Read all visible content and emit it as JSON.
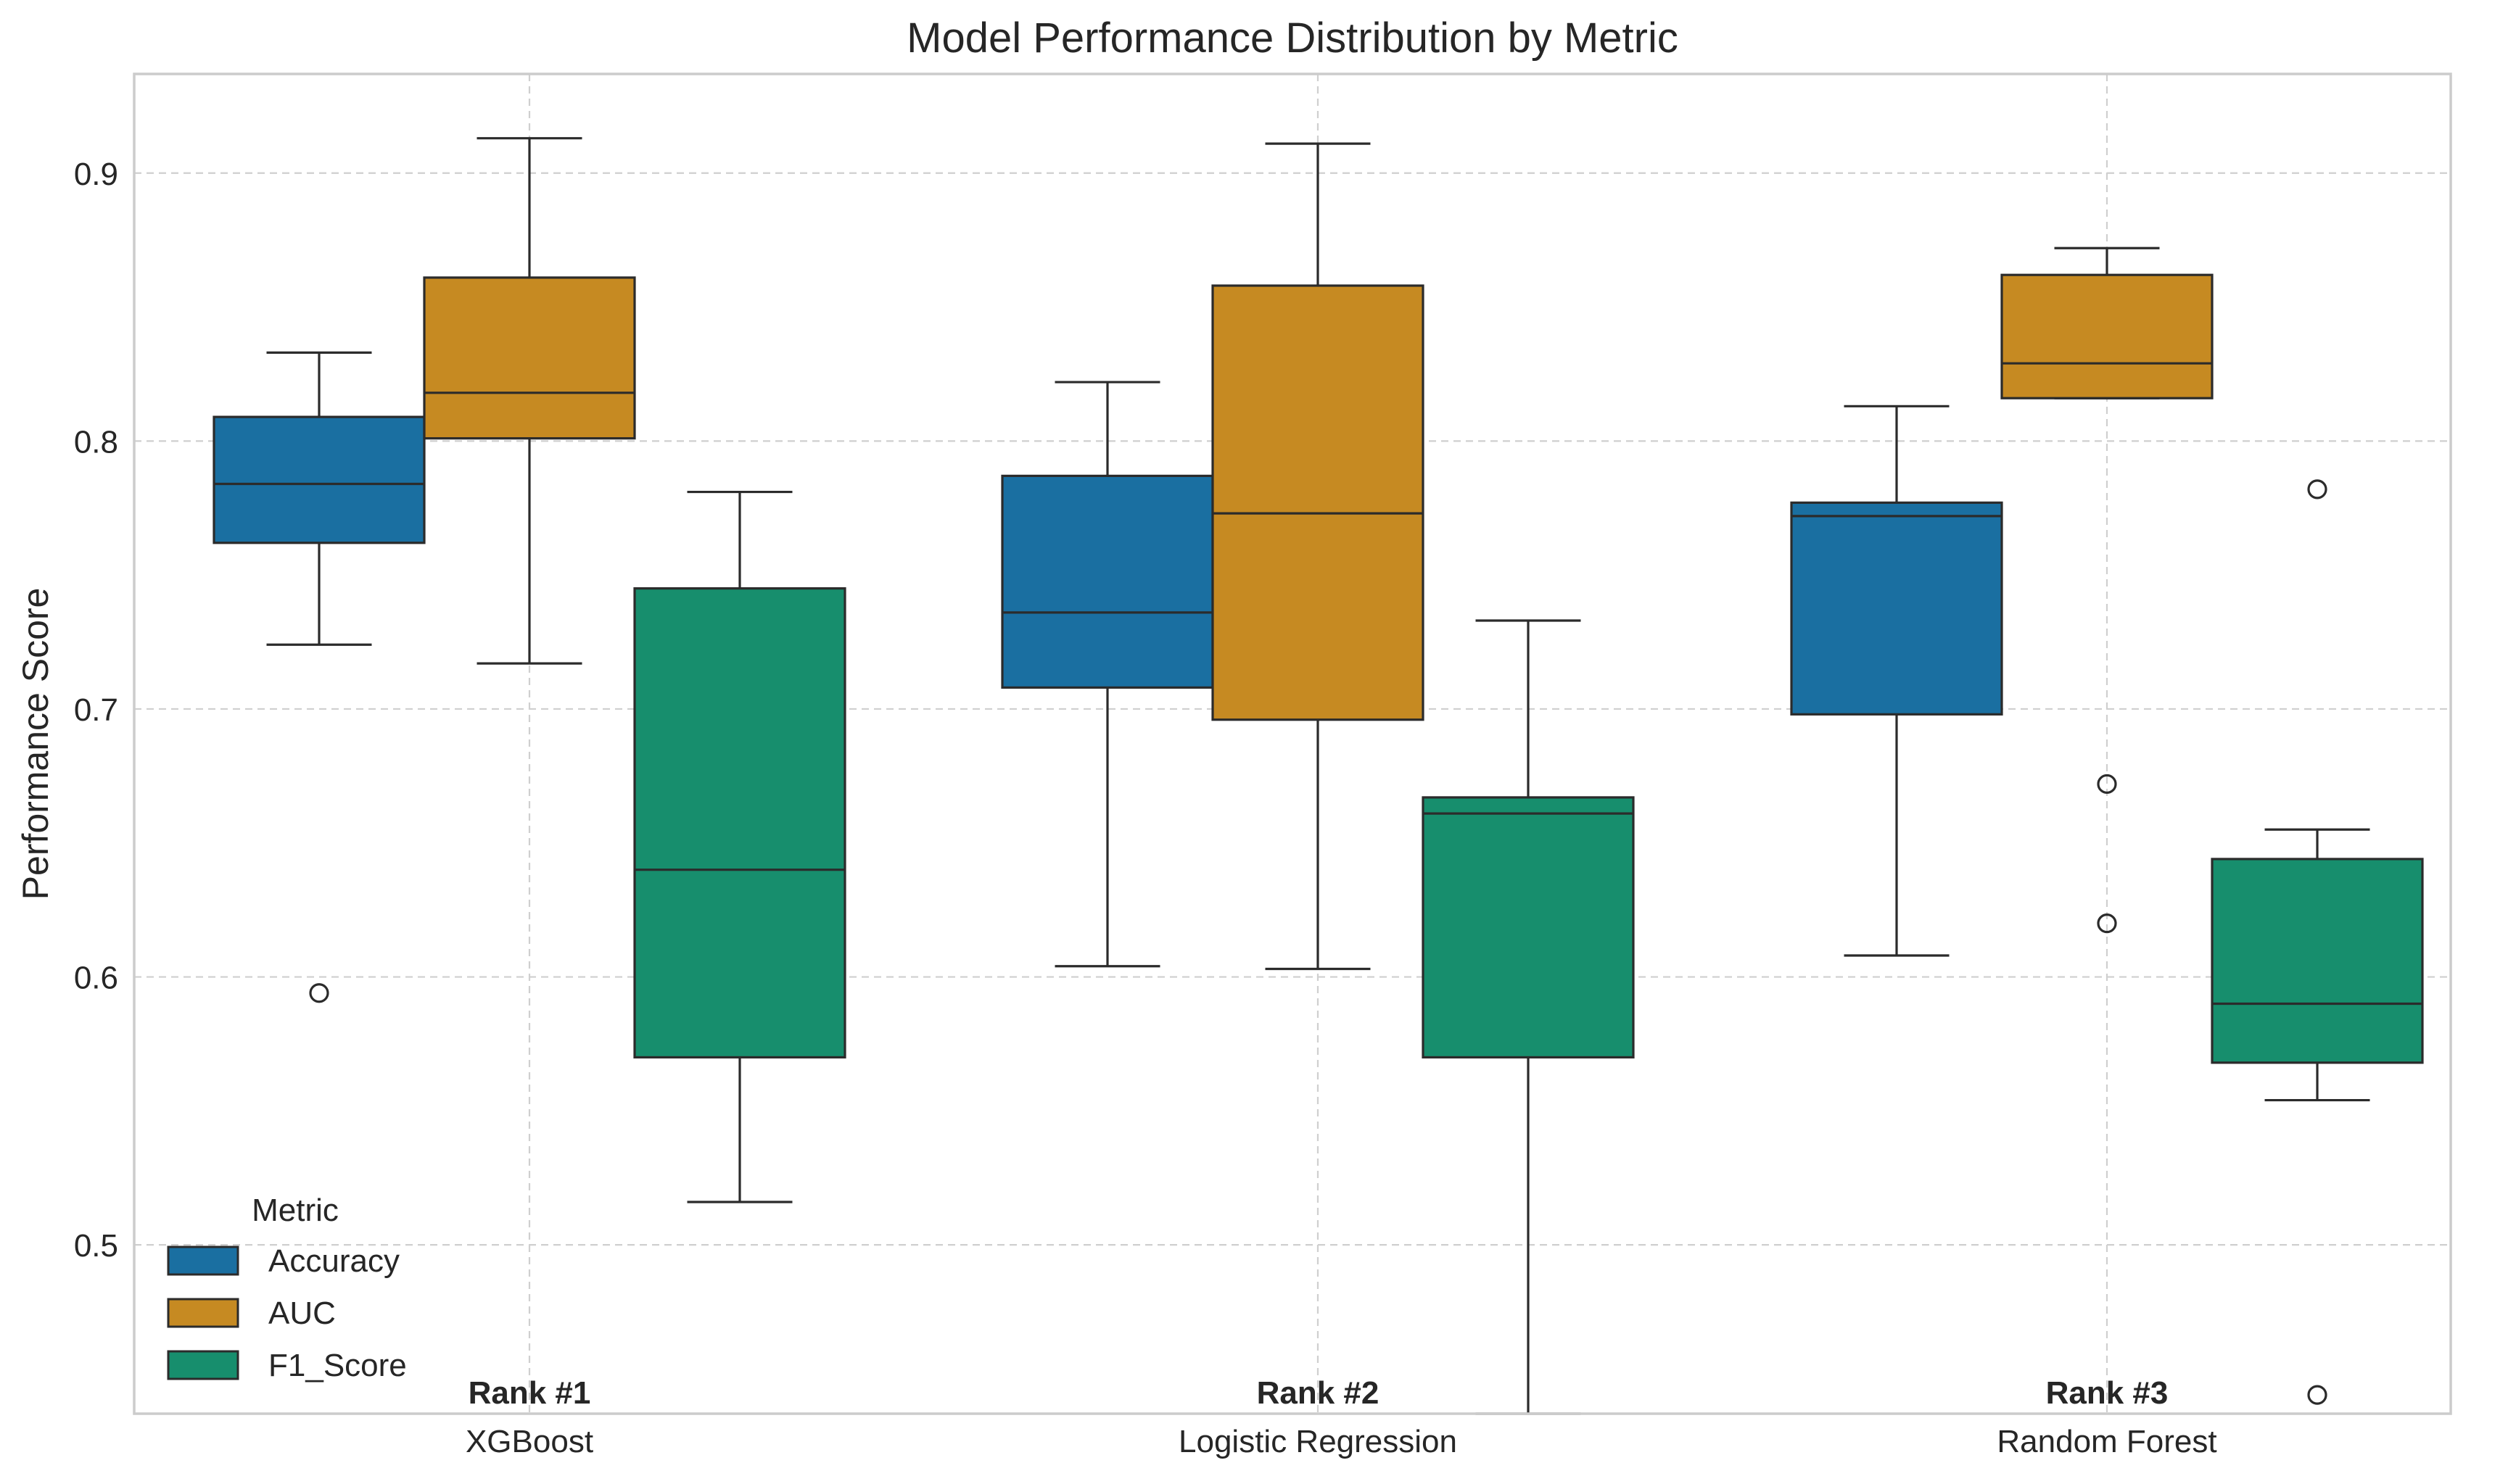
{
  "chart_data": {
    "type": "boxplot",
    "title": "Model Performance Distribution by Metric",
    "xlabel": "",
    "ylabel": "Performance Score",
    "ylim": [
      0.437,
      0.937
    ],
    "yticks": [
      0.5,
      0.6,
      0.7,
      0.8,
      0.9
    ],
    "ytick_labels": [
      "0.5",
      "0.6",
      "0.7",
      "0.8",
      "0.9"
    ],
    "grid": true,
    "categories": [
      "XGBoost",
      "Logistic Regression",
      "Random Forest"
    ],
    "rank_labels": [
      "Rank #1",
      "Rank #2",
      "Rank #3"
    ],
    "legend": {
      "title": "Metric",
      "position": "lower-left",
      "entries": [
        "Accuracy",
        "AUC",
        "F1_Score"
      ]
    },
    "series": [
      {
        "name": "Accuracy",
        "color": "#1a6fa1",
        "boxes": [
          {
            "category": "XGBoost",
            "whisker_low": 0.724,
            "q1": 0.762,
            "median": 0.784,
            "q3": 0.809,
            "whisker_high": 0.833,
            "outliers": [
              0.594
            ]
          },
          {
            "category": "Logistic Regression",
            "whisker_low": 0.604,
            "q1": 0.708,
            "median": 0.736,
            "q3": 0.787,
            "whisker_high": 0.822,
            "outliers": []
          },
          {
            "category": "Random Forest",
            "whisker_low": 0.608,
            "q1": 0.698,
            "median": 0.772,
            "q3": 0.777,
            "whisker_high": 0.813,
            "outliers": []
          }
        ]
      },
      {
        "name": "AUC",
        "color": "#c68a22",
        "boxes": [
          {
            "category": "XGBoost",
            "whisker_low": 0.717,
            "q1": 0.801,
            "median": 0.818,
            "q3": 0.861,
            "whisker_high": 0.913,
            "outliers": []
          },
          {
            "category": "Logistic Regression",
            "whisker_low": 0.603,
            "q1": 0.696,
            "median": 0.773,
            "q3": 0.858,
            "whisker_high": 0.911,
            "outliers": []
          },
          {
            "category": "Random Forest",
            "whisker_low": 0.816,
            "q1": 0.816,
            "median": 0.829,
            "q3": 0.862,
            "whisker_high": 0.872,
            "outliers": [
              0.672,
              0.62
            ]
          }
        ]
      },
      {
        "name": "F1_Score",
        "color": "#178e6d",
        "boxes": [
          {
            "category": "XGBoost",
            "whisker_low": 0.516,
            "q1": 0.57,
            "median": 0.64,
            "q3": 0.745,
            "whisker_high": 0.781,
            "outliers": []
          },
          {
            "category": "Logistic Regression",
            "whisker_low": 0.437,
            "q1": 0.57,
            "median": 0.661,
            "q3": 0.667,
            "whisker_high": 0.733,
            "outliers": []
          },
          {
            "category": "Random Forest",
            "whisker_low": 0.554,
            "q1": 0.568,
            "median": 0.59,
            "q3": 0.644,
            "whisker_high": 0.655,
            "outliers": [
              0.782,
              0.444
            ]
          }
        ]
      }
    ]
  }
}
